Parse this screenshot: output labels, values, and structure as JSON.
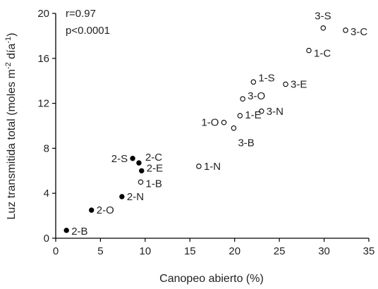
{
  "chart_data": {
    "type": "scatter",
    "title": "",
    "xlabel": "Canopeo abierto (%)",
    "ylabel": "Luz transmitida total (moles m",
    "ylabel_sup1": "-2",
    "ylabel_mid": " día",
    "ylabel_sup2": "-1",
    "ylabel_end": ")",
    "xlim": [
      0,
      35
    ],
    "ylim": [
      0,
      20
    ],
    "xticks": [
      0,
      5,
      10,
      15,
      20,
      25,
      30,
      35
    ],
    "yticks": [
      0,
      4,
      8,
      12,
      16,
      20
    ],
    "grid": false,
    "annotations": [
      "r=0.97",
      "p<0.0001"
    ],
    "series": [
      {
        "marker": "filled",
        "color": "#000000",
        "points": [
          {
            "label": "2-B",
            "x": 1.2,
            "y": 0.7
          },
          {
            "label": "2-O",
            "x": 4.0,
            "y": 2.5
          },
          {
            "label": "2-N",
            "x": 7.4,
            "y": 3.7
          },
          {
            "label": "2-S",
            "x": 8.6,
            "y": 7.1
          },
          {
            "label": "2-C",
            "x": 9.3,
            "y": 6.7
          },
          {
            "label": "2-E",
            "x": 9.6,
            "y": 6.0
          }
        ]
      },
      {
        "marker": "open",
        "color": "#000000",
        "points": [
          {
            "label": "1-B",
            "x": 9.5,
            "y": 5.0
          },
          {
            "label": "1-N",
            "x": 16.0,
            "y": 6.4
          },
          {
            "label": "1-O",
            "x": 18.8,
            "y": 10.3
          },
          {
            "label": "3-B",
            "x": 19.9,
            "y": 9.8
          },
          {
            "label": "1-E",
            "x": 20.6,
            "y": 10.9
          },
          {
            "label": "3-O",
            "x": 20.9,
            "y": 12.4
          },
          {
            "label": "3-N",
            "x": 23.0,
            "y": 11.3
          },
          {
            "label": "1-S",
            "x": 22.1,
            "y": 13.9
          },
          {
            "label": "3-E",
            "x": 25.7,
            "y": 13.7
          },
          {
            "label": "1-C",
            "x": 28.3,
            "y": 16.7
          },
          {
            "label": "3-S",
            "x": 29.9,
            "y": 18.7
          },
          {
            "label": "3-C",
            "x": 32.4,
            "y": 18.5
          }
        ]
      }
    ]
  }
}
